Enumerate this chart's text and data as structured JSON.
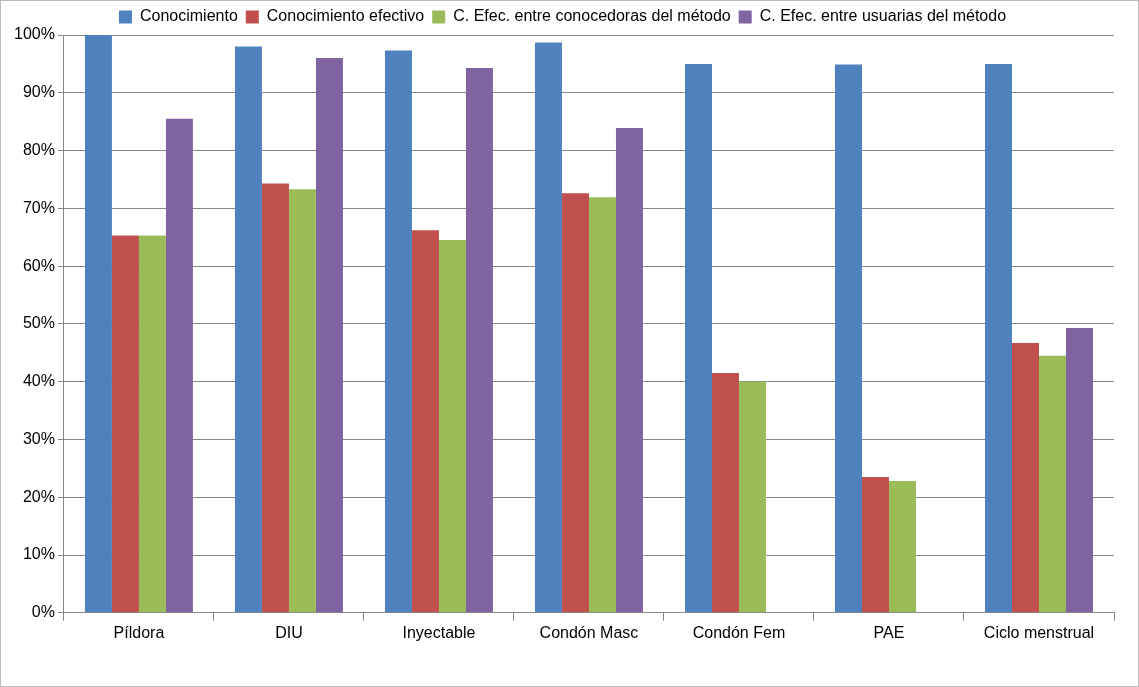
{
  "chart_data": {
    "type": "bar",
    "categories": [
      "Píldora",
      "DIU",
      "Inyectable",
      "Condón Masc",
      "Condón Fem",
      "PAE",
      "Ciclo menstrual"
    ],
    "series": [
      {
        "name": "Conocimiento",
        "color": "#4f81bd",
        "values": [
          100,
          98,
          97.3,
          98.7,
          95,
          94.9,
          95
        ]
      },
      {
        "name": "Conocimiento efectivo",
        "color": "#c0504d",
        "values": [
          65.3,
          74.3,
          66.2,
          72.6,
          41.5,
          23.5,
          46.7
        ]
      },
      {
        "name": "C. Efec. entre conocedoras del método",
        "color": "#9bbb59",
        "values": [
          65.3,
          73.3,
          64.5,
          71.9,
          40,
          22.8,
          44.5
        ]
      },
      {
        "name": "C. Efec. entre usuarias del método",
        "color": "#8064a2",
        "values": [
          85.5,
          96,
          94.3,
          83.9,
          null,
          null,
          49.3
        ]
      }
    ],
    "ylim": [
      0,
      100
    ],
    "yticks": [
      {
        "value": 0,
        "label": "0%"
      },
      {
        "value": 10,
        "label": "10%"
      },
      {
        "value": 20,
        "label": "20%"
      },
      {
        "value": 30,
        "label": "30%"
      },
      {
        "value": 40,
        "label": "40%"
      },
      {
        "value": 50,
        "label": "50%"
      },
      {
        "value": 60,
        "label": "60%"
      },
      {
        "value": 70,
        "label": "70%"
      },
      {
        "value": 80,
        "label": "80%"
      },
      {
        "value": 90,
        "label": "90%"
      },
      {
        "value": 100,
        "label": "100%"
      }
    ],
    "grid": "y",
    "legend": "top"
  }
}
